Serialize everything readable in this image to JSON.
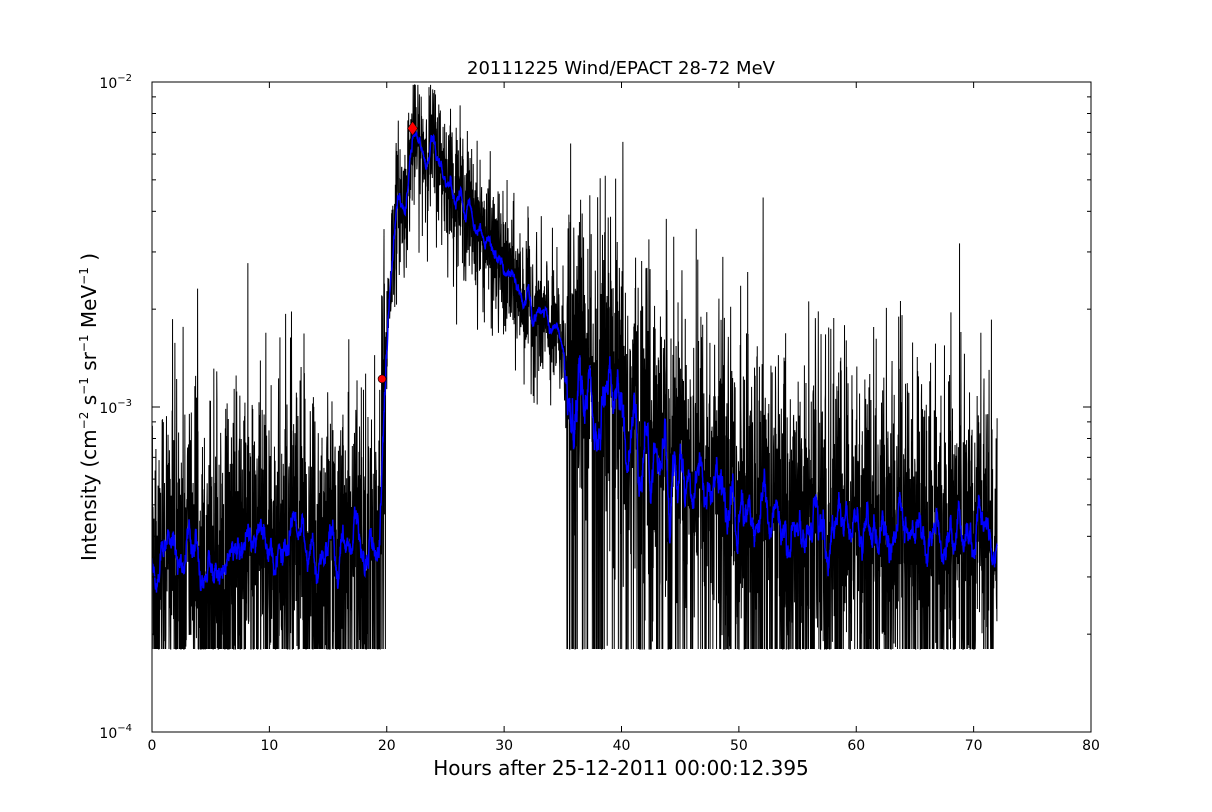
{
  "chart_data": {
    "type": "line",
    "title": "20111225 Wind/EPACT 28-72 MeV",
    "xlabel": "Hours after 25-12-2011 00:00:12.395",
    "ylabel_parts": {
      "prefix": "Intensity (cm",
      "e1": "−2",
      "u2": " s",
      "e2": "−1",
      "u3": " sr",
      "e3": "−1",
      "u4": " MeV",
      "e4": "−1",
      "suffix": " )"
    },
    "xlim": [
      0,
      80
    ],
    "ylim": [
      0.0001,
      0.01
    ],
    "yscale": "log",
    "grid": false,
    "x_ticks": [
      "0",
      "10",
      "20",
      "30",
      "40",
      "50",
      "60",
      "70",
      "80"
    ],
    "y_ticks": [
      {
        "base": "10",
        "exp": "−4",
        "value": 0.0001
      },
      {
        "base": "10",
        "exp": "−3",
        "value": 0.001
      },
      {
        "base": "10",
        "exp": "−2",
        "value": 0.01
      }
    ],
    "series": [
      {
        "role": "raw",
        "color": "#000000",
        "x_range": [
          0,
          72
        ],
        "profile_hours": [
          0,
          19.4,
          19.7,
          20.0,
          20.5,
          21.0,
          21.5,
          22.2,
          23.0,
          24.0,
          25.0,
          27.0,
          30.0,
          33.0,
          36.0,
          38.0,
          40.0,
          43.0,
          46.0,
          50.0,
          55.0,
          60.0,
          65.0,
          72.0
        ],
        "profile_intensity": [
          0.00038,
          0.0004,
          0.0012,
          0.0017,
          0.0031,
          0.0045,
          0.004,
          0.0068,
          0.0061,
          0.0062,
          0.0052,
          0.004,
          0.0026,
          0.0019,
          0.0014,
          0.0012,
          0.001,
          0.0009,
          0.0007,
          0.00055,
          0.00048,
          0.00046,
          0.00045,
          0.00043
        ],
        "floor": 0.00018
      },
      {
        "role": "smoothed",
        "color": "#0000ff",
        "x_range": [
          0,
          72
        ]
      }
    ],
    "markers": [
      {
        "x": 19.6,
        "y": 0.00122,
        "shape": "circle",
        "color": "#ff0000"
      },
      {
        "x": 22.2,
        "y": 0.0072,
        "shape": "diamond",
        "color": "#ff0000"
      }
    ]
  }
}
